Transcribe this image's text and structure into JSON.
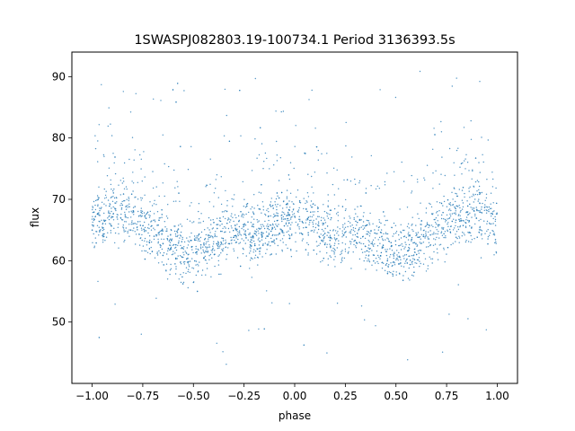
{
  "chart_data": {
    "type": "scatter",
    "title": "1SWASPJ082803.19-100734.1 Period 3136393.5s",
    "xlabel": "phase",
    "ylabel": "flux",
    "xlim": [
      -1.1,
      1.1
    ],
    "ylim": [
      40,
      94
    ],
    "xticks": [
      -1.0,
      -0.75,
      -0.5,
      -0.25,
      0.0,
      0.25,
      0.5,
      0.75,
      1.0
    ],
    "xtick_labels": [
      "−1.00",
      "−0.75",
      "−0.50",
      "−0.25",
      "0.00",
      "0.25",
      "0.50",
      "0.75",
      "1.00"
    ],
    "yticks": [
      50,
      60,
      70,
      80,
      90
    ],
    "ytick_labels": [
      "50",
      "60",
      "70",
      "80",
      "90"
    ],
    "grid": false,
    "legend": "none",
    "marker_color": "#1f77b4",
    "series": [
      {
        "x_range": [
          -1.0,
          1.0
        ],
        "symmetric_about_phase": 0.0,
        "profile_phase": [
          0.0,
          0.1,
          0.2,
          0.3,
          0.4,
          0.5,
          0.6,
          0.7,
          0.8,
          0.9,
          1.0
        ],
        "profile_flux": [
          67,
          66,
          64,
          65,
          63,
          61,
          62,
          65,
          67,
          68,
          66
        ],
        "typical_flux_range": [
          58,
          78
        ],
        "outlier_flux_range": [
          43,
          91
        ]
      }
    ]
  }
}
